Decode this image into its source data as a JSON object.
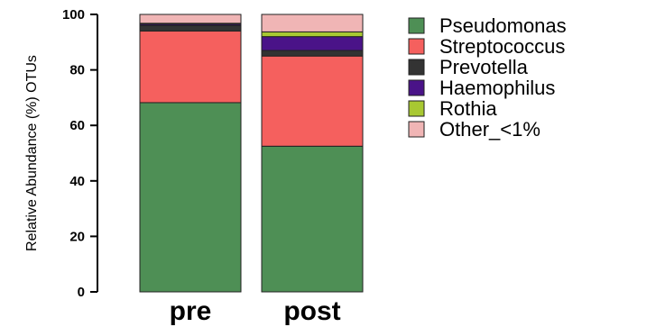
{
  "chart_data": {
    "type": "bar",
    "stacked": true,
    "categories": [
      "pre",
      "post"
    ],
    "series": [
      {
        "name": "Pseudomonas",
        "color": "#4e8f55",
        "values": [
          68.2,
          52.5
        ]
      },
      {
        "name": "Streptococcus",
        "color": "#f5605e",
        "values": [
          25.8,
          32.5
        ]
      },
      {
        "name": "Prevotella",
        "color": "#333333",
        "values": [
          2.0,
          2.0
        ]
      },
      {
        "name": "Haemophilus",
        "color": "#4a1388",
        "values": [
          0.5,
          5.0
        ]
      },
      {
        "name": "Rothia",
        "color": "#a8c832",
        "values": [
          0.3,
          1.7
        ]
      },
      {
        "name": "Other_<1%",
        "color": "#f0b5b5",
        "values": [
          3.2,
          6.3
        ]
      }
    ],
    "ylabel": "Relative Abundance (%) OTUs",
    "xlabel": "",
    "ylim": [
      0,
      100
    ],
    "yticks": [
      0,
      20,
      40,
      60,
      80,
      100
    ],
    "legend_position": "right",
    "grid": false
  }
}
